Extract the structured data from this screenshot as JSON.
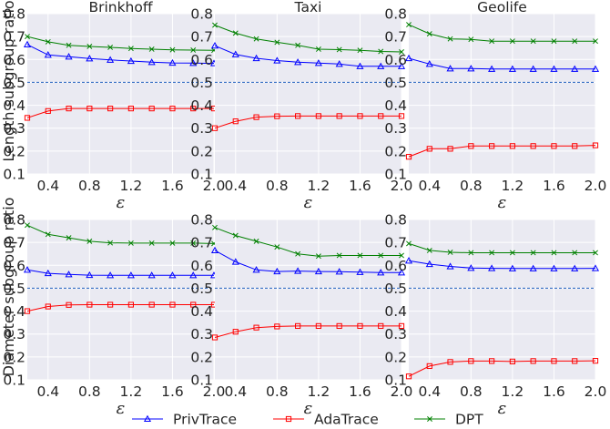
{
  "chart_data": [
    {
      "type": "line",
      "row": 0,
      "col": 0,
      "title": "Brinkhoff",
      "ylabel": "Length subgroup ratio",
      "xlabel": "ε",
      "x": [
        0.2,
        0.4,
        0.6,
        0.8,
        1.0,
        1.2,
        1.4,
        1.6,
        1.8,
        2.0
      ],
      "xlim": [
        0.2,
        2.0
      ],
      "ylim": [
        0.1,
        0.8
      ],
      "xticks": [
        "0.4",
        "0.8",
        "1.2",
        "1.6",
        "2.0"
      ],
      "yticks": [
        "0.1",
        "0.2",
        "0.3",
        "0.4",
        "0.5",
        "0.6",
        "0.7",
        "0.8"
      ],
      "reference_line": 0.5,
      "series": [
        {
          "name": "PrivTrace",
          "values": [
            0.665,
            0.62,
            0.612,
            0.604,
            0.598,
            0.593,
            0.588,
            0.585,
            0.584,
            0.583
          ]
        },
        {
          "name": "AdaTrace",
          "values": [
            0.345,
            0.375,
            0.386,
            0.386,
            0.386,
            0.386,
            0.386,
            0.386,
            0.386,
            0.386
          ]
        },
        {
          "name": "DPT",
          "values": [
            0.7,
            0.677,
            0.662,
            0.657,
            0.653,
            0.648,
            0.645,
            0.642,
            0.641,
            0.64
          ]
        }
      ]
    },
    {
      "type": "line",
      "row": 0,
      "col": 1,
      "title": "Taxi",
      "ylabel": "",
      "xlabel": "ε",
      "x": [
        0.2,
        0.4,
        0.6,
        0.8,
        1.0,
        1.2,
        1.4,
        1.6,
        1.8,
        2.0
      ],
      "xlim": [
        0.2,
        2.0
      ],
      "ylim": [
        0.1,
        0.8
      ],
      "xticks": [
        "0.4",
        "0.8",
        "1.2",
        "1.6",
        "2.0"
      ],
      "yticks": [
        "0.1",
        "0.2",
        "0.3",
        "0.4",
        "0.5",
        "0.6",
        "0.7",
        "0.8"
      ],
      "reference_line": 0.5,
      "series": [
        {
          "name": "PrivTrace",
          "values": [
            0.66,
            0.622,
            0.605,
            0.595,
            0.588,
            0.584,
            0.58,
            0.57,
            0.57,
            0.57
          ]
        },
        {
          "name": "AdaTrace",
          "values": [
            0.3,
            0.33,
            0.348,
            0.352,
            0.353,
            0.353,
            0.353,
            0.353,
            0.353,
            0.353
          ]
        },
        {
          "name": "DPT",
          "values": [
            0.75,
            0.715,
            0.69,
            0.675,
            0.662,
            0.645,
            0.643,
            0.64,
            0.635,
            0.633
          ]
        }
      ]
    },
    {
      "type": "line",
      "row": 0,
      "col": 2,
      "title": "Geolife",
      "ylabel": "",
      "xlabel": "ε",
      "x": [
        0.2,
        0.4,
        0.6,
        0.8,
        1.0,
        1.2,
        1.4,
        1.6,
        1.8,
        2.0
      ],
      "xlim": [
        0.2,
        2.0
      ],
      "ylim": [
        0.1,
        0.8
      ],
      "xticks": [
        "0.4",
        "0.8",
        "1.2",
        "1.6",
        "2.0"
      ],
      "yticks": [
        "0.1",
        "0.2",
        "0.3",
        "0.4",
        "0.5",
        "0.6",
        "0.7",
        "0.8"
      ],
      "reference_line": 0.5,
      "series": [
        {
          "name": "PrivTrace",
          "values": [
            0.605,
            0.58,
            0.56,
            0.56,
            0.558,
            0.558,
            0.558,
            0.558,
            0.558,
            0.558
          ]
        },
        {
          "name": "AdaTrace",
          "values": [
            0.175,
            0.21,
            0.21,
            0.222,
            0.222,
            0.222,
            0.222,
            0.222,
            0.222,
            0.225
          ]
        },
        {
          "name": "DPT",
          "values": [
            0.752,
            0.712,
            0.69,
            0.688,
            0.68,
            0.68,
            0.68,
            0.68,
            0.68,
            0.68
          ]
        }
      ]
    },
    {
      "type": "line",
      "row": 1,
      "col": 0,
      "title": "",
      "ylabel": "Diameter subgroup ratio",
      "xlabel": "ε",
      "x": [
        0.2,
        0.4,
        0.6,
        0.8,
        1.0,
        1.2,
        1.4,
        1.6,
        1.8,
        2.0
      ],
      "xlim": [
        0.2,
        2.0
      ],
      "ylim": [
        0.1,
        0.8
      ],
      "xticks": [
        "0.4",
        "0.8",
        "1.2",
        "1.6",
        "2.0"
      ],
      "yticks": [
        "0.1",
        "0.2",
        "0.3",
        "0.4",
        "0.5",
        "0.6",
        "0.7",
        "0.8"
      ],
      "reference_line": 0.5,
      "series": [
        {
          "name": "PrivTrace",
          "values": [
            0.58,
            0.565,
            0.56,
            0.557,
            0.556,
            0.556,
            0.556,
            0.556,
            0.556,
            0.556
          ]
        },
        {
          "name": "AdaTrace",
          "values": [
            0.4,
            0.42,
            0.427,
            0.428,
            0.428,
            0.428,
            0.428,
            0.428,
            0.428,
            0.428
          ]
        },
        {
          "name": "DPT",
          "values": [
            0.775,
            0.735,
            0.72,
            0.705,
            0.698,
            0.697,
            0.697,
            0.697,
            0.697,
            0.695
          ]
        }
      ]
    },
    {
      "type": "line",
      "row": 1,
      "col": 1,
      "title": "",
      "ylabel": "",
      "xlabel": "ε",
      "x": [
        0.2,
        0.4,
        0.6,
        0.8,
        1.0,
        1.2,
        1.4,
        1.6,
        1.8,
        2.0
      ],
      "xlim": [
        0.2,
        2.0
      ],
      "ylim": [
        0.1,
        0.8
      ],
      "xticks": [
        "0.4",
        "0.8",
        "1.2",
        "1.6",
        "2.0"
      ],
      "yticks": [
        "0.1",
        "0.2",
        "0.3",
        "0.4",
        "0.5",
        "0.6",
        "0.7",
        "0.8"
      ],
      "reference_line": 0.5,
      "series": [
        {
          "name": "PrivTrace",
          "values": [
            0.665,
            0.615,
            0.58,
            0.573,
            0.575,
            0.573,
            0.572,
            0.57,
            0.568,
            0.568
          ]
        },
        {
          "name": "AdaTrace",
          "values": [
            0.285,
            0.31,
            0.328,
            0.333,
            0.335,
            0.335,
            0.335,
            0.335,
            0.335,
            0.335
          ]
        },
        {
          "name": "DPT",
          "values": [
            0.765,
            0.73,
            0.705,
            0.68,
            0.65,
            0.64,
            0.643,
            0.643,
            0.643,
            0.643
          ]
        }
      ]
    },
    {
      "type": "line",
      "row": 1,
      "col": 2,
      "title": "",
      "ylabel": "",
      "xlabel": "ε",
      "x": [
        0.2,
        0.4,
        0.6,
        0.8,
        1.0,
        1.2,
        1.4,
        1.6,
        1.8,
        2.0
      ],
      "xlim": [
        0.2,
        2.0
      ],
      "ylim": [
        0.1,
        0.8
      ],
      "xticks": [
        "0.4",
        "0.8",
        "1.2",
        "1.6",
        "2.0"
      ],
      "yticks": [
        "0.1",
        "0.2",
        "0.3",
        "0.4",
        "0.5",
        "0.6",
        "0.7",
        "0.8"
      ],
      "reference_line": 0.5,
      "series": [
        {
          "name": "PrivTrace",
          "values": [
            0.62,
            0.605,
            0.595,
            0.588,
            0.587,
            0.586,
            0.586,
            0.586,
            0.586,
            0.587
          ]
        },
        {
          "name": "AdaTrace",
          "values": [
            0.115,
            0.16,
            0.178,
            0.182,
            0.182,
            0.18,
            0.182,
            0.182,
            0.182,
            0.183
          ]
        },
        {
          "name": "DPT",
          "values": [
            0.695,
            0.665,
            0.657,
            0.655,
            0.655,
            0.655,
            0.655,
            0.655,
            0.655,
            0.655
          ]
        }
      ]
    }
  ],
  "legend": {
    "placement": "bottom-center",
    "items": [
      {
        "label": "PrivTrace",
        "color": "#0000ff",
        "marker": "triangle"
      },
      {
        "label": "AdaTrace",
        "color": "#ff0000",
        "marker": "square"
      },
      {
        "label": "DPT",
        "color": "#008000",
        "marker": "x"
      }
    ]
  },
  "reference_line_color": "#1f5fbf",
  "background_color": "#eaeaf2",
  "grid": true
}
